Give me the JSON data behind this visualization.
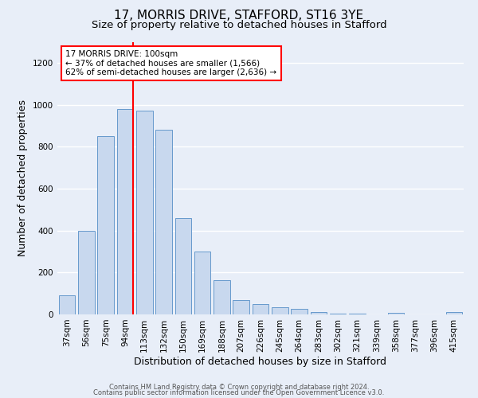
{
  "title1": "17, MORRIS DRIVE, STAFFORD, ST16 3YE",
  "title2": "Size of property relative to detached houses in Stafford",
  "xlabel": "Distribution of detached houses by size in Stafford",
  "ylabel": "Number of detached properties",
  "categories": [
    "37sqm",
    "56sqm",
    "75sqm",
    "94sqm",
    "113sqm",
    "132sqm",
    "150sqm",
    "169sqm",
    "188sqm",
    "207sqm",
    "226sqm",
    "245sqm",
    "264sqm",
    "283sqm",
    "302sqm",
    "321sqm",
    "339sqm",
    "358sqm",
    "377sqm",
    "396sqm",
    "415sqm"
  ],
  "values": [
    90,
    400,
    850,
    980,
    970,
    880,
    460,
    300,
    165,
    70,
    50,
    35,
    25,
    10,
    5,
    3,
    0,
    8,
    0,
    0,
    10
  ],
  "bar_color": "#c8d8ee",
  "bar_edge_color": "#6699cc",
  "bg_color": "#e8eef8",
  "grid_color": "#ffffff",
  "annotation_box_text": "17 MORRIS DRIVE: 100sqm\n← 37% of detached houses are smaller (1,566)\n62% of semi-detached houses are larger (2,636) →",
  "annotation_box_color": "white",
  "annotation_box_edge_color": "red",
  "vline_color": "red",
  "footnote1": "Contains HM Land Registry data © Crown copyright and database right 2024.",
  "footnote2": "Contains public sector information licensed under the Open Government Licence v3.0.",
  "ylim": [
    0,
    1300
  ],
  "title1_fontsize": 11,
  "title2_fontsize": 9.5,
  "xlabel_fontsize": 9,
  "ylabel_fontsize": 9,
  "tick_fontsize": 7.5,
  "annot_fontsize": 7.5,
  "footnote_fontsize": 6
}
